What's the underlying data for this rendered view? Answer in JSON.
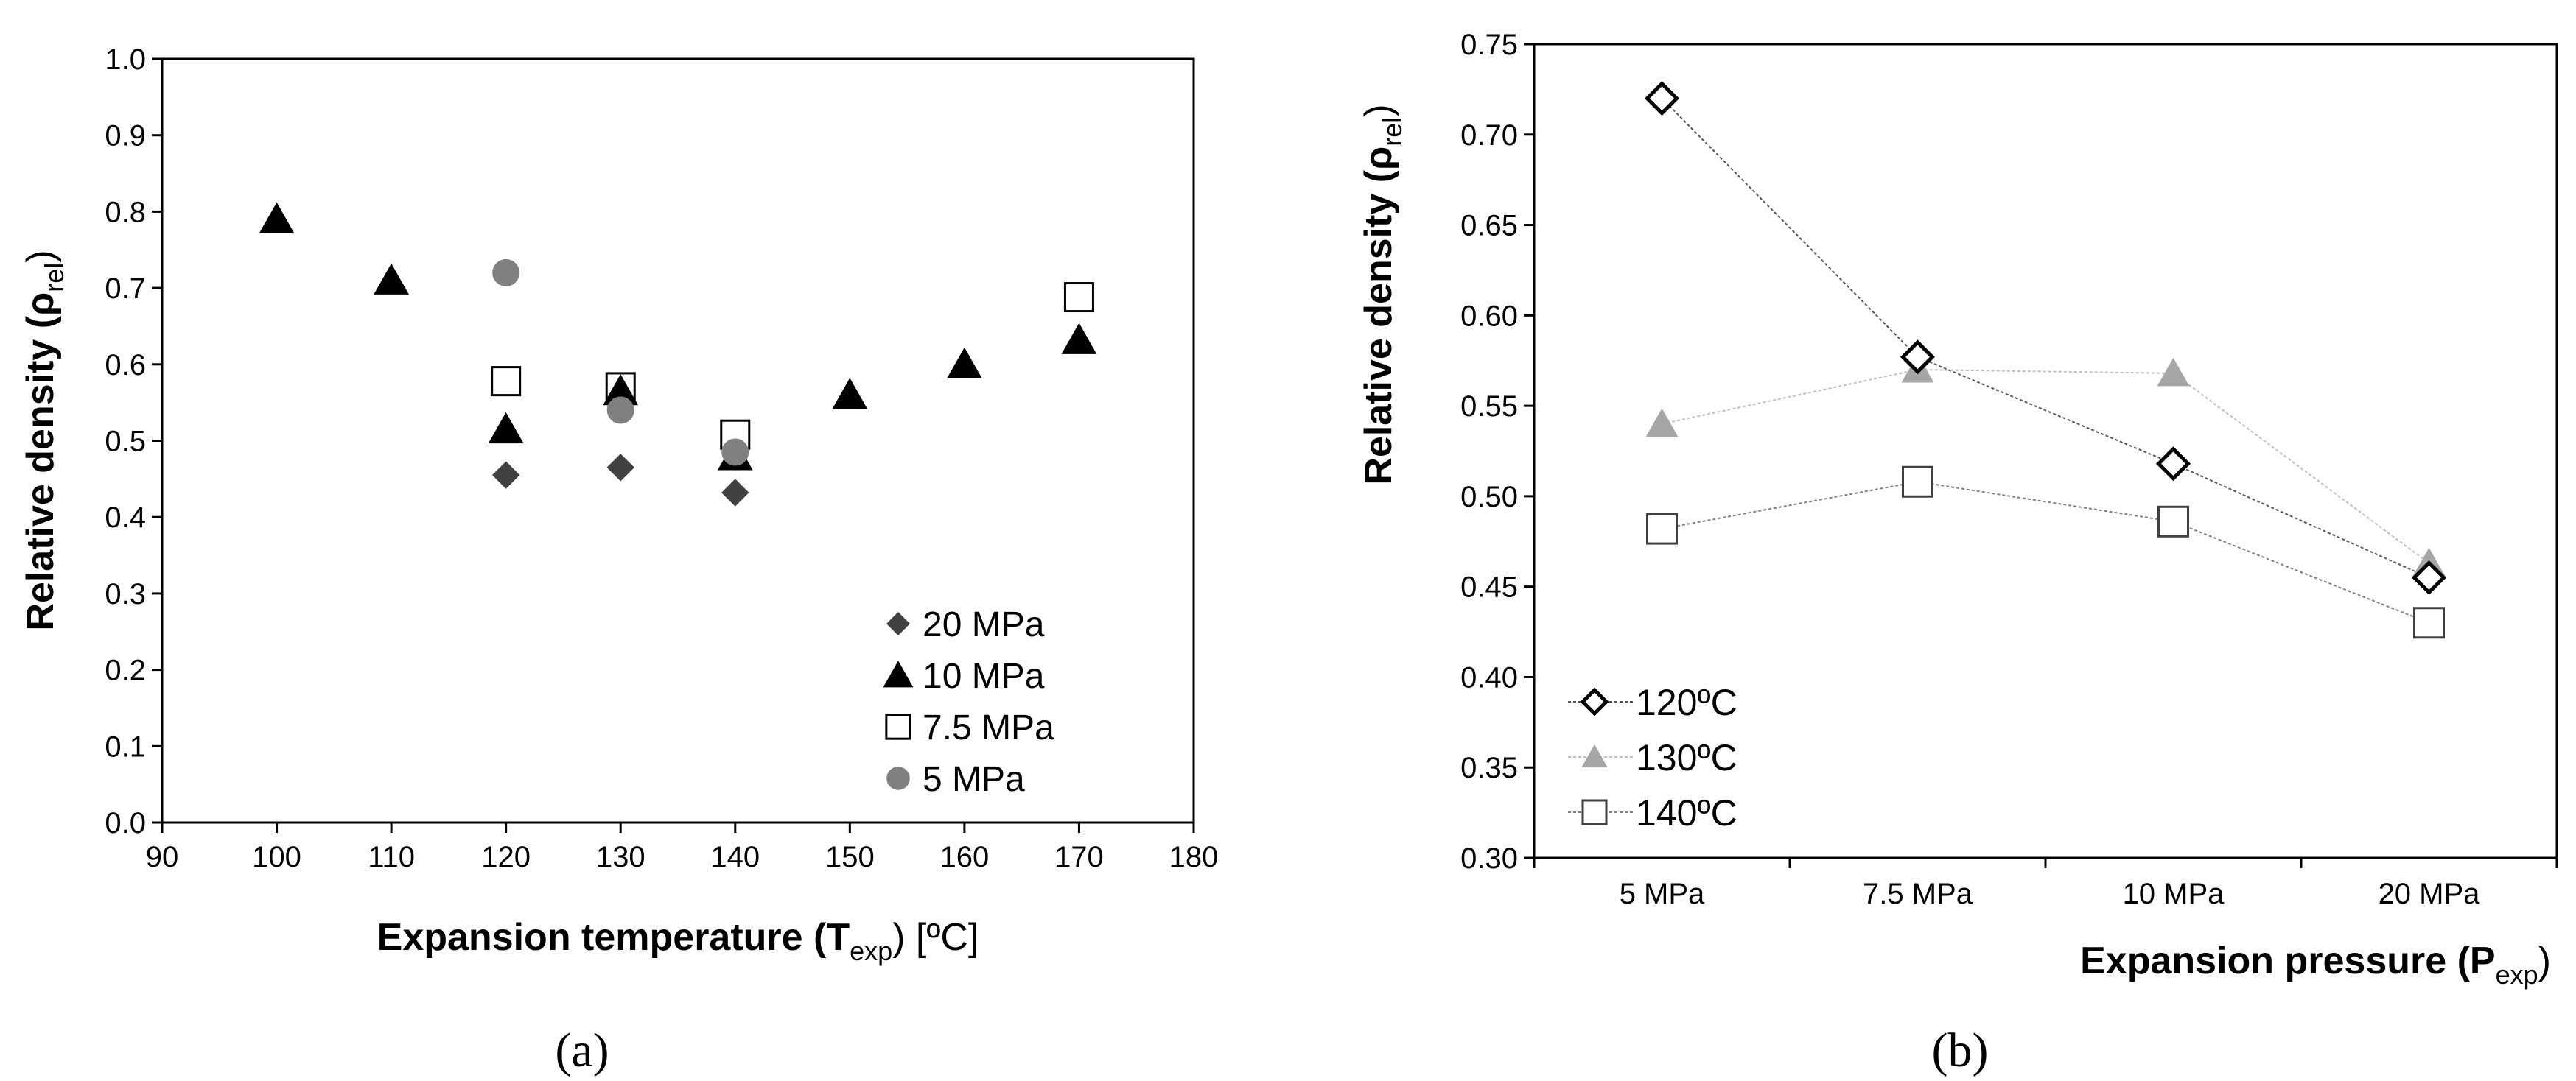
{
  "chart_data": [
    {
      "panel": "a",
      "type": "scatter",
      "title": "",
      "xlabel": {
        "main": "Expansion temperature (T",
        "sub": "exp",
        "tail": ") [ºC]"
      },
      "ylabel": {
        "main": "Relative density (ρ",
        "sub": "rel",
        "tail": ")"
      },
      "xlim": [
        90,
        180
      ],
      "ylim": [
        0.0,
        1.0
      ],
      "xticks": [
        90,
        100,
        110,
        120,
        130,
        140,
        150,
        160,
        170,
        180
      ],
      "yticks": [
        "0.0",
        "0.1",
        "0.2",
        "0.3",
        "0.4",
        "0.5",
        "0.6",
        "0.7",
        "0.8",
        "0.9",
        "1.0"
      ],
      "legend_position": "bottom-right",
      "series": [
        {
          "name": "20 MPa",
          "marker": "diamond-filled",
          "color": "#404040",
          "points": [
            [
              120,
              0.455
            ],
            [
              130,
              0.465
            ],
            [
              140,
              0.432
            ]
          ]
        },
        {
          "name": "10 MPa",
          "marker": "triangle-filled",
          "color": "#000000",
          "points": [
            [
              100,
              0.79
            ],
            [
              110,
              0.71
            ],
            [
              120,
              0.515
            ],
            [
              130,
              0.565
            ],
            [
              140,
              0.48
            ],
            [
              150,
              0.56
            ],
            [
              160,
              0.6
            ],
            [
              170,
              0.632
            ]
          ]
        },
        {
          "name": "7.5 MPa",
          "marker": "square-open",
          "color": "#000000",
          "points": [
            [
              120,
              0.578
            ],
            [
              130,
              0.57
            ],
            [
              140,
              0.508
            ],
            [
              170,
              0.688
            ]
          ]
        },
        {
          "name": "5 MPa",
          "marker": "circle-filled",
          "color": "#808080",
          "points": [
            [
              120,
              0.72
            ],
            [
              130,
              0.54
            ],
            [
              140,
              0.485
            ]
          ]
        }
      ]
    },
    {
      "panel": "b",
      "type": "line",
      "title": "",
      "xlabel": {
        "main": "Expansion pressure (P",
        "sub": "exp",
        "tail": ")"
      },
      "ylabel": {
        "main": "Relative density (ρ",
        "sub": "rel",
        "tail": ")"
      },
      "categories": [
        "5 MPa",
        "7.5 MPa",
        "10 MPa",
        "20 MPa"
      ],
      "ylim": [
        0.3,
        0.75
      ],
      "yticks": [
        "0.30",
        "0.35",
        "0.40",
        "0.45",
        "0.50",
        "0.55",
        "0.60",
        "0.65",
        "0.70",
        "0.75"
      ],
      "legend_position": "bottom-left",
      "series": [
        {
          "name": "120ºC",
          "marker": "diamond-open",
          "color": "#000000",
          "line": "#555555",
          "values": [
            0.72,
            0.577,
            0.518,
            0.455
          ]
        },
        {
          "name": "130ºC",
          "marker": "triangle-filled",
          "color": "#a6a6a6",
          "line": "#bfbfbf",
          "values": [
            0.54,
            0.57,
            0.568,
            0.463
          ]
        },
        {
          "name": "140ºC",
          "marker": "square-open",
          "color": "#404040",
          "line": "#808080",
          "values": [
            0.482,
            0.508,
            0.486,
            0.43
          ]
        }
      ]
    }
  ],
  "captions": {
    "a": "(a)",
    "b": "(b)"
  }
}
